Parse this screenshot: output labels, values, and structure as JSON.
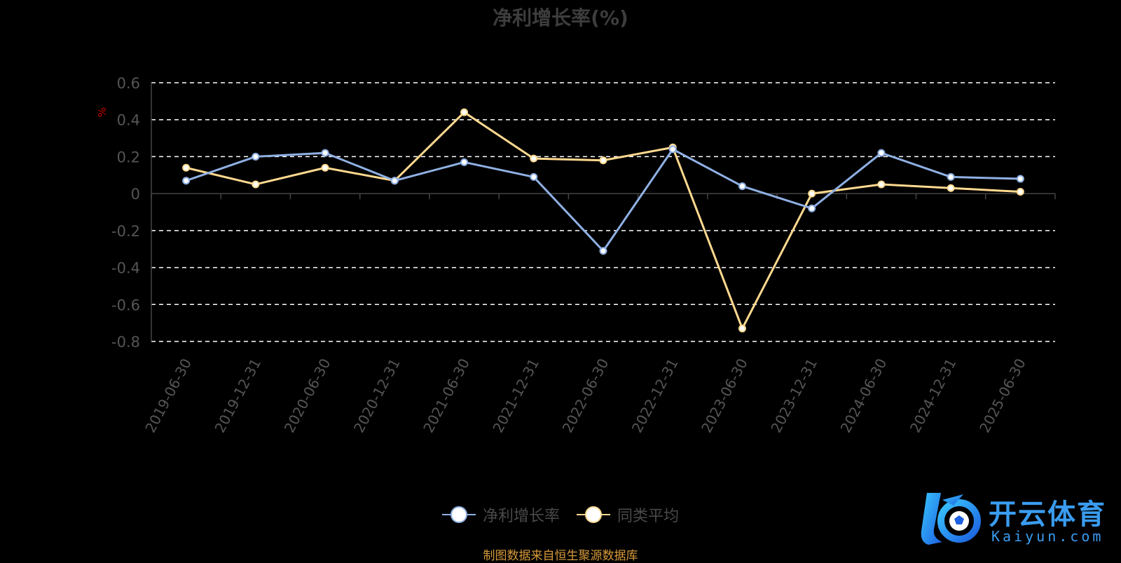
{
  "chart_data": {
    "type": "line",
    "title": "净利增长率(%)",
    "ylabel": "%",
    "ylim": [
      -0.8,
      0.6
    ],
    "yticks": [
      0.6,
      0.4,
      0.2,
      0,
      -0.2,
      -0.4,
      -0.6,
      -0.8
    ],
    "ytick_labels": [
      "0.6",
      "0.4",
      "0.2",
      "0",
      "-0.2",
      "-0.4",
      "-0.6",
      "-0.8"
    ],
    "grid": true,
    "legend_position": "bottom-center",
    "categories": [
      "2019-06-30",
      "2019-12-31",
      "2020-06-30",
      "2020-12-31",
      "2021-06-30",
      "2021-12-31",
      "2022-06-30",
      "2022-12-31",
      "2023-06-30",
      "2023-12-31",
      "2024-06-30",
      "2024-12-31",
      "2025-06-30"
    ],
    "series": [
      {
        "name": "净利增长率",
        "color": "#8fb0e3",
        "values": [
          0.07,
          0.2,
          0.22,
          0.07,
          0.17,
          0.09,
          -0.31,
          0.24,
          0.04,
          -0.08,
          0.22,
          0.09,
          0.08
        ]
      },
      {
        "name": "同类平均",
        "color": "#ffd98f",
        "values": [
          0.14,
          0.05,
          0.14,
          0.07,
          0.44,
          0.19,
          0.18,
          0.25,
          -0.73,
          0.0,
          0.05,
          0.03,
          0.01
        ]
      }
    ]
  },
  "source_note": "制图数据来自恒生聚源数据库",
  "watermark": {
    "text_cn": "开云体育",
    "text_en": "Kaiyun.com"
  },
  "colors": {
    "background": "#000000",
    "axis_text": "#555555",
    "grid": "#ffffff",
    "ylabel": "#cc0000",
    "source": "#d69a3a",
    "watermark": "#3a9cf0"
  }
}
